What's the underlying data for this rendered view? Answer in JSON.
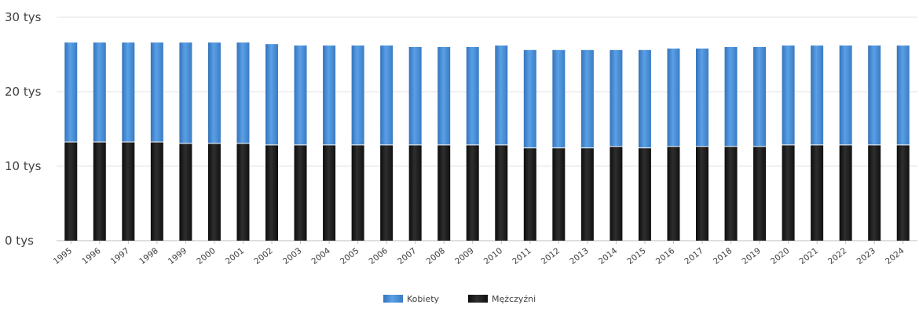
{
  "chart_data": {
    "type": "bar",
    "stacked": true,
    "categories": [
      "1995",
      "1996",
      "1997",
      "1998",
      "1999",
      "2000",
      "2001",
      "2002",
      "2003",
      "2004",
      "2005",
      "2006",
      "2007",
      "2008",
      "2009",
      "2010",
      "2011",
      "2012",
      "2013",
      "2014",
      "2015",
      "2016",
      "2017",
      "2018",
      "2019",
      "2020",
      "2021",
      "2022",
      "2023",
      "2024"
    ],
    "series": [
      {
        "name": "Mężczyźni",
        "color": "#1c1c1c",
        "values": [
          13200,
          13200,
          13200,
          13200,
          13000,
          13000,
          13000,
          12800,
          12800,
          12800,
          12800,
          12800,
          12800,
          12800,
          12800,
          12800,
          12400,
          12400,
          12400,
          12600,
          12400,
          12600,
          12600,
          12600,
          12600,
          12800,
          12800,
          12800,
          12800,
          12800
        ]
      },
      {
        "name": "Kobiety",
        "color": "#4a8fd8",
        "values": [
          13400,
          13400,
          13400,
          13400,
          13600,
          13600,
          13600,
          13600,
          13400,
          13400,
          13400,
          13400,
          13200,
          13200,
          13200,
          13400,
          13200,
          13200,
          13200,
          13000,
          13200,
          13200,
          13200,
          13400,
          13400,
          13400,
          13400,
          13400,
          13400,
          13400
        ]
      }
    ],
    "ylim": [
      0,
      30000
    ],
    "yticks": [
      {
        "value": 0,
        "label": "0 tys"
      },
      {
        "value": 10000,
        "label": "10 tys"
      },
      {
        "value": 20000,
        "label": "20 tys"
      },
      {
        "value": 30000,
        "label": "30 tys"
      }
    ],
    "grid": true,
    "legend_position": "bottom-center",
    "legend": [
      {
        "name": "Kobiety",
        "color": "#4a8fd8"
      },
      {
        "name": "Mężczyźni",
        "color": "#1c1c1c"
      }
    ]
  }
}
